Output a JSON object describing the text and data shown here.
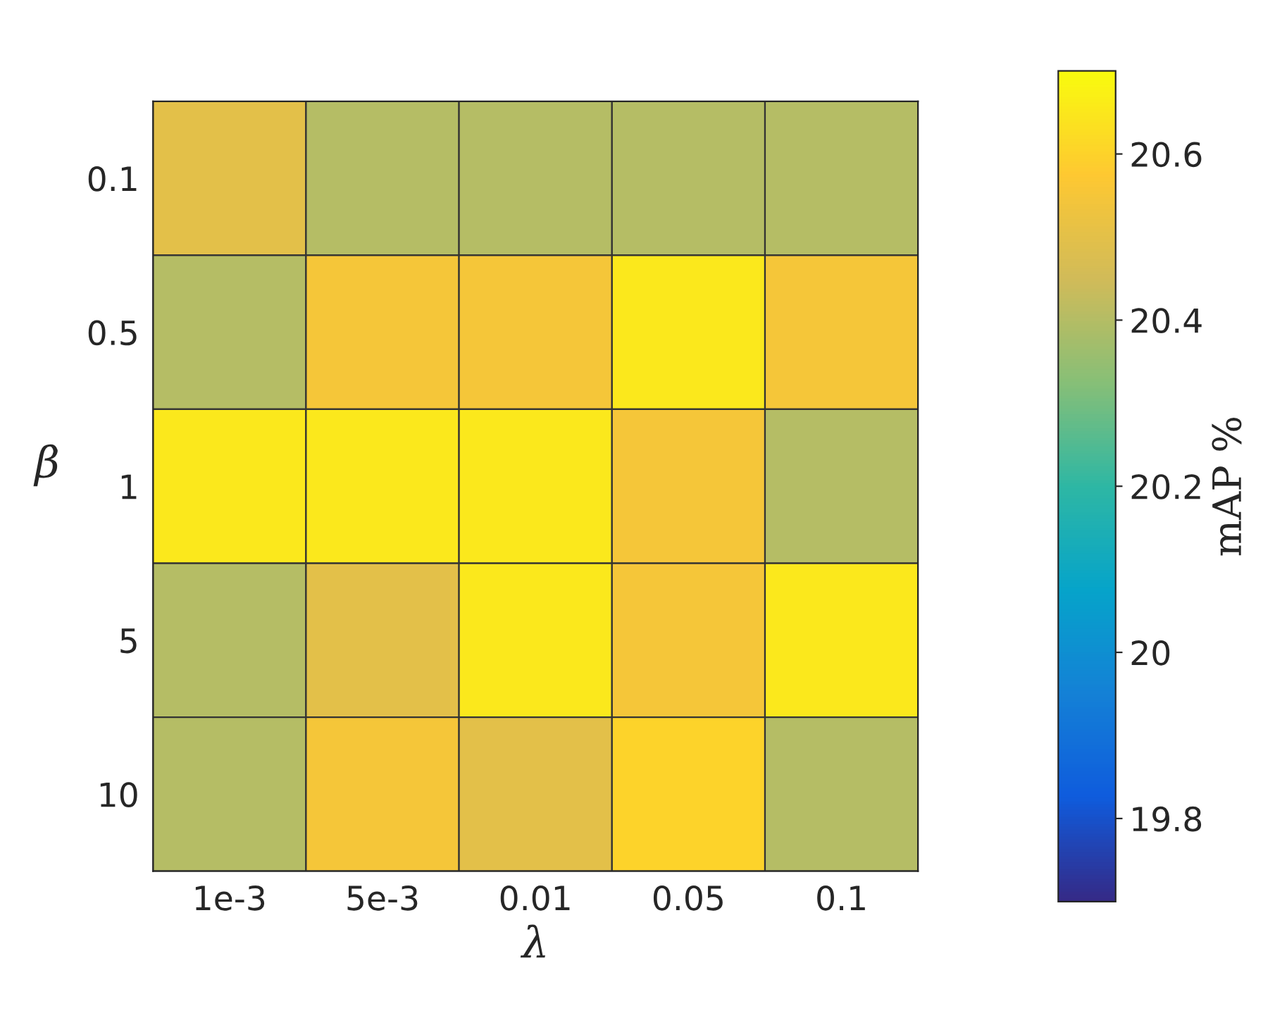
{
  "chart_data": {
    "type": "heatmap",
    "xlabel": "λ",
    "ylabel": "β",
    "clabel": "mAP %",
    "categories": [
      "1e-3",
      "5e-3",
      "0.01",
      "0.05",
      "0.1"
    ],
    "y_categories": [
      "0.1",
      "0.5",
      "1",
      "5",
      "10"
    ],
    "cells": [
      [
        20.5,
        20.4,
        20.4,
        20.4,
        20.4
      ],
      [
        20.4,
        20.55,
        20.55,
        20.65,
        20.55
      ],
      [
        20.65,
        20.65,
        20.65,
        20.55,
        20.4
      ],
      [
        20.4,
        20.5,
        20.65,
        20.55,
        20.65
      ],
      [
        20.4,
        20.55,
        20.5,
        20.6,
        20.4
      ]
    ],
    "clim": [
      19.7,
      20.7
    ],
    "cticks": [
      19.8,
      20,
      20.2,
      20.4,
      20.6
    ]
  }
}
